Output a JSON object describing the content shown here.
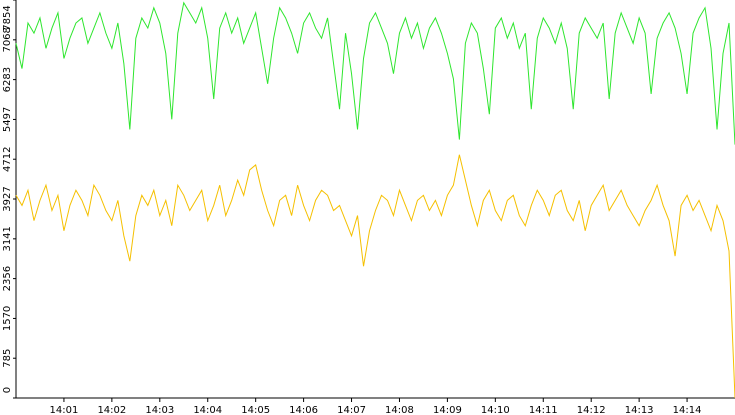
{
  "chart_data": {
    "type": "line",
    "x": [
      0,
      0.125,
      0.25,
      0.375,
      0.5,
      0.625,
      0.75,
      0.875,
      1,
      1.125,
      1.25,
      1.375,
      1.5,
      1.625,
      1.75,
      1.875,
      2,
      2.125,
      2.25,
      2.375,
      2.5,
      2.625,
      2.75,
      2.875,
      3,
      3.125,
      3.25,
      3.375,
      3.5,
      3.625,
      3.75,
      3.875,
      4,
      4.125,
      4.25,
      4.375,
      4.5,
      4.625,
      4.75,
      4.875,
      5,
      5.125,
      5.25,
      5.375,
      5.5,
      5.625,
      5.75,
      5.875,
      6,
      6.125,
      6.25,
      6.375,
      6.5,
      6.625,
      6.75,
      6.875,
      7,
      7.125,
      7.25,
      7.375,
      7.5,
      7.625,
      7.75,
      7.875,
      8,
      8.125,
      8.25,
      8.375,
      8.5,
      8.625,
      8.75,
      8.875,
      9,
      9.125,
      9.25,
      9.375,
      9.5,
      9.625,
      9.75,
      9.875,
      10,
      10.125,
      10.25,
      10.375,
      10.5,
      10.625,
      10.75,
      10.875,
      11,
      11.125,
      11.25,
      11.375,
      11.5,
      11.625,
      11.75,
      11.875,
      12,
      12.125,
      12.25,
      12.375,
      12.5,
      12.625,
      12.75,
      12.875,
      13,
      13.125,
      13.25,
      13.375,
      13.5,
      13.625,
      13.75,
      13.875,
      14,
      14.125,
      14.25,
      14.375,
      14.5,
      14.625,
      14.75,
      14.875,
      15
    ],
    "series": [
      {
        "color": "#2ee62e",
        "values": [
          7000,
          6500,
          7400,
          7200,
          7500,
          6900,
          7300,
          7600,
          6700,
          7100,
          7400,
          7500,
          7000,
          7300,
          7600,
          7200,
          6900,
          7400,
          6600,
          5300,
          7100,
          7500,
          7300,
          7700,
          7400,
          6800,
          5500,
          7200,
          7800,
          7600,
          7400,
          7700,
          7100,
          5900,
          7300,
          7600,
          7200,
          7500,
          7000,
          7300,
          7600,
          6900,
          6200,
          7100,
          7700,
          7500,
          7200,
          6800,
          7400,
          7600,
          7300,
          7100,
          7500,
          6600,
          5700,
          7200,
          6400,
          5300,
          6700,
          7400,
          7600,
          7300,
          7000,
          6400,
          7200,
          7500,
          7100,
          7400,
          6900,
          7300,
          7500,
          7200,
          6800,
          6300,
          5100,
          7000,
          7400,
          7200,
          6500,
          5600,
          7300,
          7500,
          7100,
          7400,
          6900,
          7200,
          5700,
          7100,
          7500,
          7300,
          7000,
          7400,
          6900,
          5700,
          7200,
          7500,
          7300,
          7100,
          7400,
          5900,
          7200,
          7600,
          7300,
          7000,
          7500,
          7200,
          6000,
          7100,
          7400,
          7600,
          7300,
          6800,
          6000,
          7200,
          7500,
          7700,
          6900,
          5300,
          6800,
          7400,
          5000
        ]
      },
      {
        "color": "#f5c000",
        "values": [
          4000,
          3800,
          4100,
          3500,
          3900,
          4200,
          3700,
          4000,
          3300,
          3800,
          4100,
          3900,
          3600,
          4200,
          4000,
          3700,
          3500,
          3900,
          3200,
          2700,
          3600,
          4000,
          3800,
          4100,
          3600,
          3900,
          3400,
          4200,
          4000,
          3700,
          3900,
          4100,
          3500,
          3800,
          4200,
          3600,
          3900,
          4300,
          4000,
          4500,
          4600,
          4100,
          3700,
          3400,
          3900,
          4000,
          3600,
          4200,
          3800,
          3500,
          3900,
          4100,
          4000,
          3700,
          3800,
          3500,
          3200,
          3600,
          2600,
          3300,
          3700,
          4000,
          3900,
          3600,
          4100,
          3800,
          3500,
          3900,
          4000,
          3700,
          3900,
          3600,
          4000,
          4200,
          4800,
          4300,
          3800,
          3400,
          3900,
          4100,
          3700,
          3500,
          3900,
          4000,
          3600,
          3400,
          3800,
          4100,
          3900,
          3600,
          4000,
          4100,
          3700,
          3500,
          3900,
          3300,
          3800,
          4000,
          4200,
          3700,
          3900,
          4100,
          3800,
          3600,
          3400,
          3700,
          3900,
          4200,
          3800,
          3500,
          2800,
          3800,
          4000,
          3700,
          3900,
          3600,
          3300,
          3800,
          3500,
          2900,
          0
        ]
      }
    ],
    "xlim": [
      0,
      15
    ],
    "xticks": [
      {
        "value": 1,
        "label": "14:01"
      },
      {
        "value": 2,
        "label": "14:02"
      },
      {
        "value": 3,
        "label": "14:03"
      },
      {
        "value": 4,
        "label": "14:04"
      },
      {
        "value": 5,
        "label": "14:05"
      },
      {
        "value": 6,
        "label": "14:06"
      },
      {
        "value": 7,
        "label": "14:07"
      },
      {
        "value": 8,
        "label": "14:08"
      },
      {
        "value": 9,
        "label": "14:09"
      },
      {
        "value": 10,
        "label": "14:10"
      },
      {
        "value": 11,
        "label": "14:11"
      },
      {
        "value": 12,
        "label": "14:12"
      },
      {
        "value": 13,
        "label": "14:13"
      },
      {
        "value": 14,
        "label": "14:14"
      }
    ],
    "ylim": [
      0,
      7854
    ],
    "yticks": [
      0,
      785,
      1570,
      2356,
      3141,
      3927,
      4712,
      5497,
      6283,
      7068,
      7854
    ]
  }
}
